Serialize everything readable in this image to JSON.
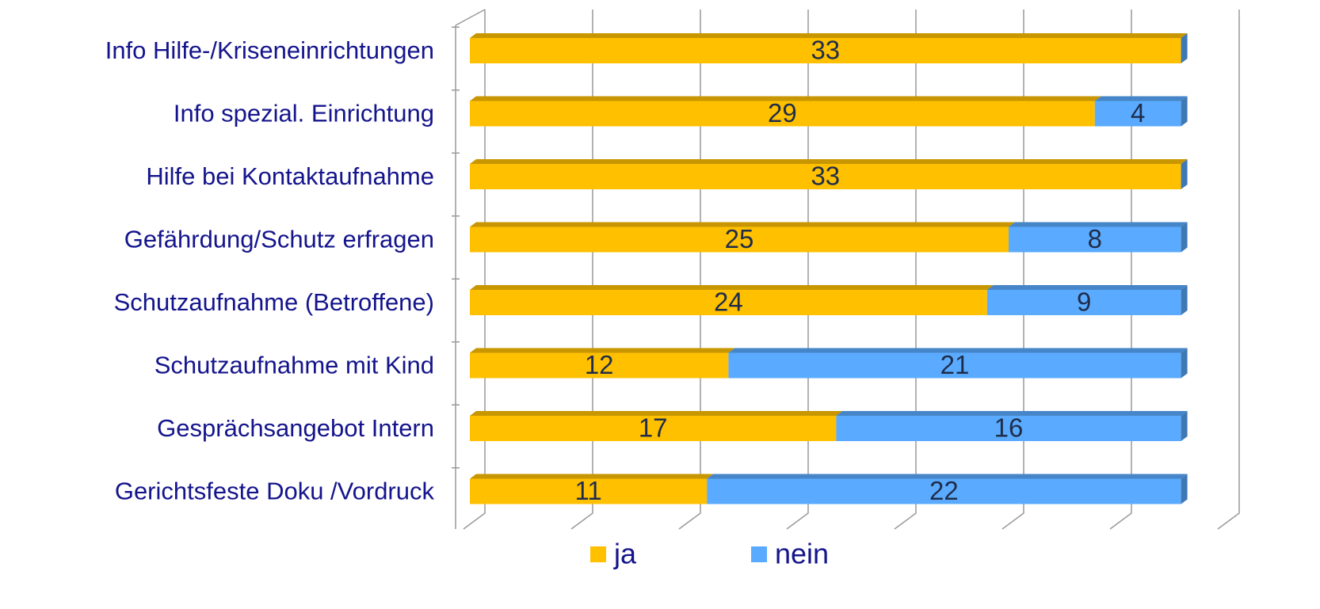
{
  "chart_data": {
    "type": "bar",
    "orientation": "horizontal",
    "stacked": true,
    "categories": [
      "Info Hilfe-/Kriseneinrichtungen",
      "Info spezial. Einrichtung",
      "Hilfe bei Kontaktaufnahme",
      "Gefährdung/Schutz erfragen",
      "Schutzaufnahme (Betroffene)",
      "Schutzaufnahme  mit Kind",
      "Gesprächsangebot  Intern",
      "Gerichtsfeste Doku /Vordruck"
    ],
    "series": [
      {
        "name": "ja",
        "color": "#ffc000",
        "values": [
          33,
          29,
          33,
          25,
          24,
          12,
          17,
          11
        ]
      },
      {
        "name": "nein",
        "color": "#5aabff",
        "values": [
          0,
          4,
          0,
          8,
          9,
          21,
          16,
          22
        ]
      }
    ],
    "xlim": [
      0,
      35
    ],
    "xticks": [
      0,
      5,
      10,
      15,
      20,
      25,
      30,
      35
    ],
    "grid": true,
    "legend": "bottom"
  }
}
